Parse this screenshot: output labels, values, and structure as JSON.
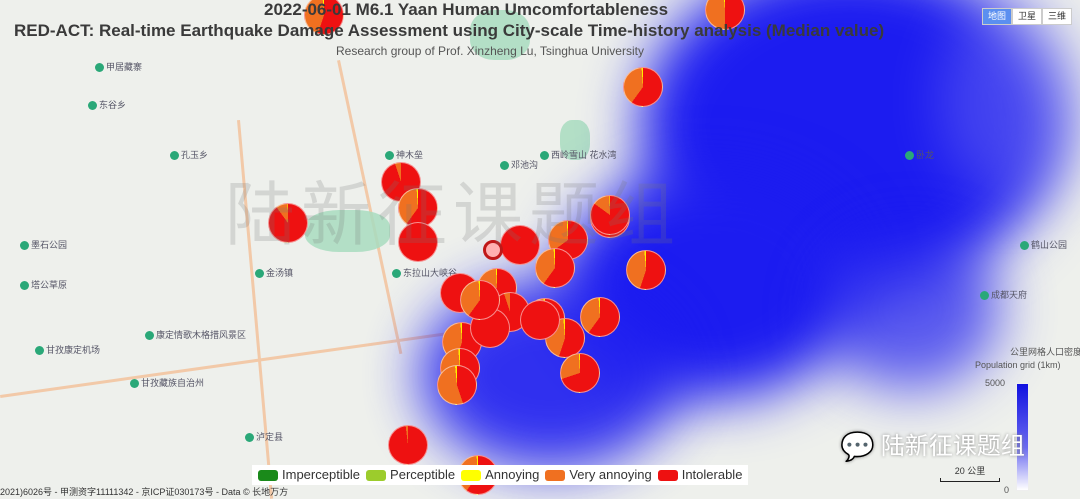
{
  "header": {
    "title": "2022-06-01 M6.1 Yaan Human Umcomfortableness",
    "subtitle": "RED-ACT: Real-time Earthquake Damage Assessment using City-scale Time-history analysis (Median value)",
    "credit": "Research group of Prof. Xinzheng Lu, Tsinghua University"
  },
  "map_type": [
    "地图",
    "卫星",
    "三维"
  ],
  "places": [
    "甲居藏寨",
    "东谷乡",
    "孔玉乡",
    "墨石公园",
    "塔公草原",
    "康定情歌木格措风景区",
    "甘孜康定机场",
    "甘孜藏族自治州",
    "泸定县",
    "神木垒",
    "东拉山大峡谷",
    "西岭雪山 花水湾",
    "邓池沟",
    "金汤镇",
    "成都天府",
    "鹤山公园",
    "卧龙"
  ],
  "legend": [
    {
      "label": "Imperceptible",
      "color": "#1a8a1a"
    },
    {
      "label": "Perceptible",
      "color": "#9ccc2c"
    },
    {
      "label": "Annoying",
      "color": "#ffff00"
    },
    {
      "label": "Very annoying",
      "color": "#f07020"
    },
    {
      "label": "Intolerable",
      "color": "#ee1111"
    }
  ],
  "pies_intolerable_fraction": [
    0.55,
    0.6,
    0.95,
    0.6,
    0.9,
    0.98,
    1,
    0.65,
    1,
    0.6,
    0.55,
    1,
    0.7,
    0.95,
    0.6,
    0.6,
    0.55,
    1,
    0.55,
    0.5,
    0.7,
    0.45,
    0.98,
    0.6,
    0.5,
    0.85,
    1,
    0.6
  ],
  "colorbar": {
    "title_cn": "公里网格人口密度",
    "title_en": "Population grid (1km)",
    "max": "5000",
    "min": "0"
  },
  "scale": "20 公里",
  "copyright": "2021)6026号 - 甲测资字11111342 - 京ICP证030173号 - Data © 长地万方",
  "watermark": "陆新征课题组",
  "wechat_label": "陆新征课题组"
}
